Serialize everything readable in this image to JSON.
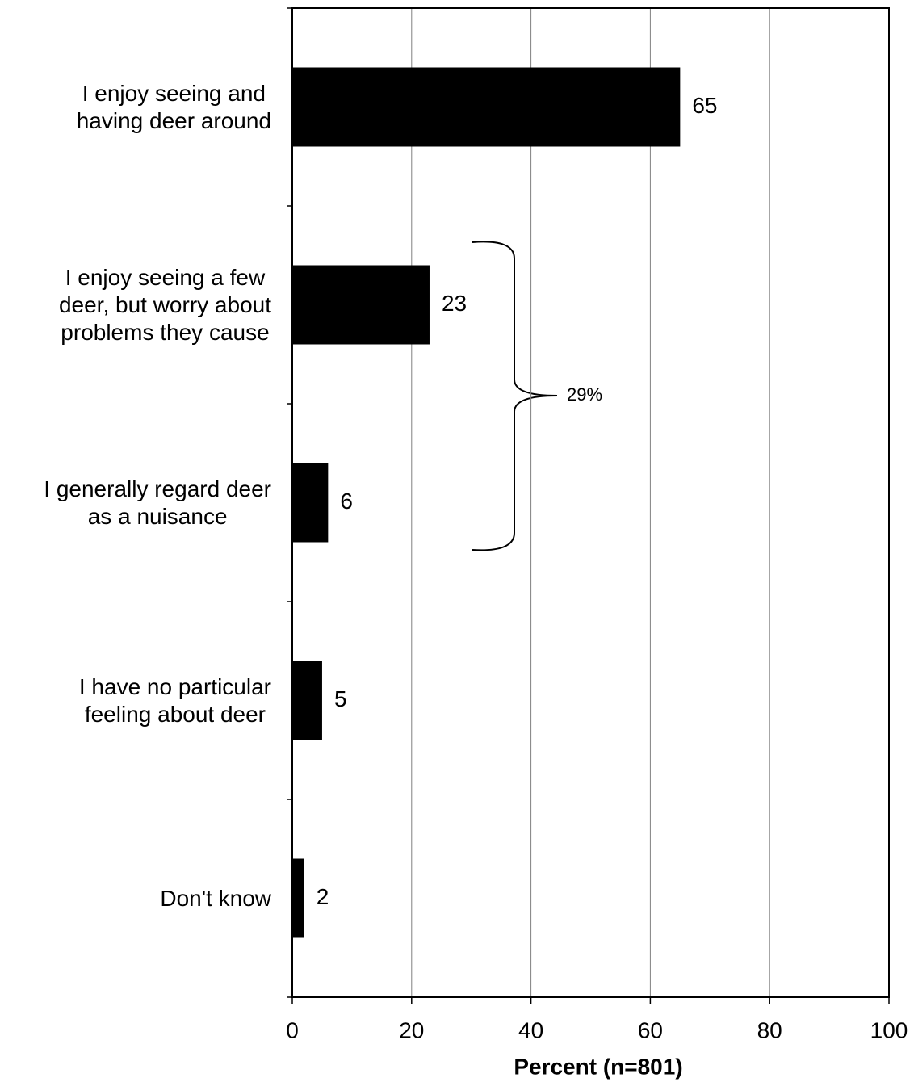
{
  "chart_data": {
    "type": "hbar",
    "categories": [
      "I enjoy seeing and\nhaving deer around",
      "I enjoy seeing a few\ndeer, but worry about\nproblems they cause",
      "I generally regard deer\nas a nuisance",
      "I have no particular\nfeeling about deer",
      "Don't know"
    ],
    "values": [
      65,
      23,
      6,
      5,
      2
    ],
    "color": "#000000",
    "xlabel": "Percent (n=801)",
    "xlim": [
      0,
      100
    ],
    "xticks": [
      0,
      20,
      40,
      60,
      80,
      100
    ],
    "grid": true,
    "annotation": "29%"
  }
}
